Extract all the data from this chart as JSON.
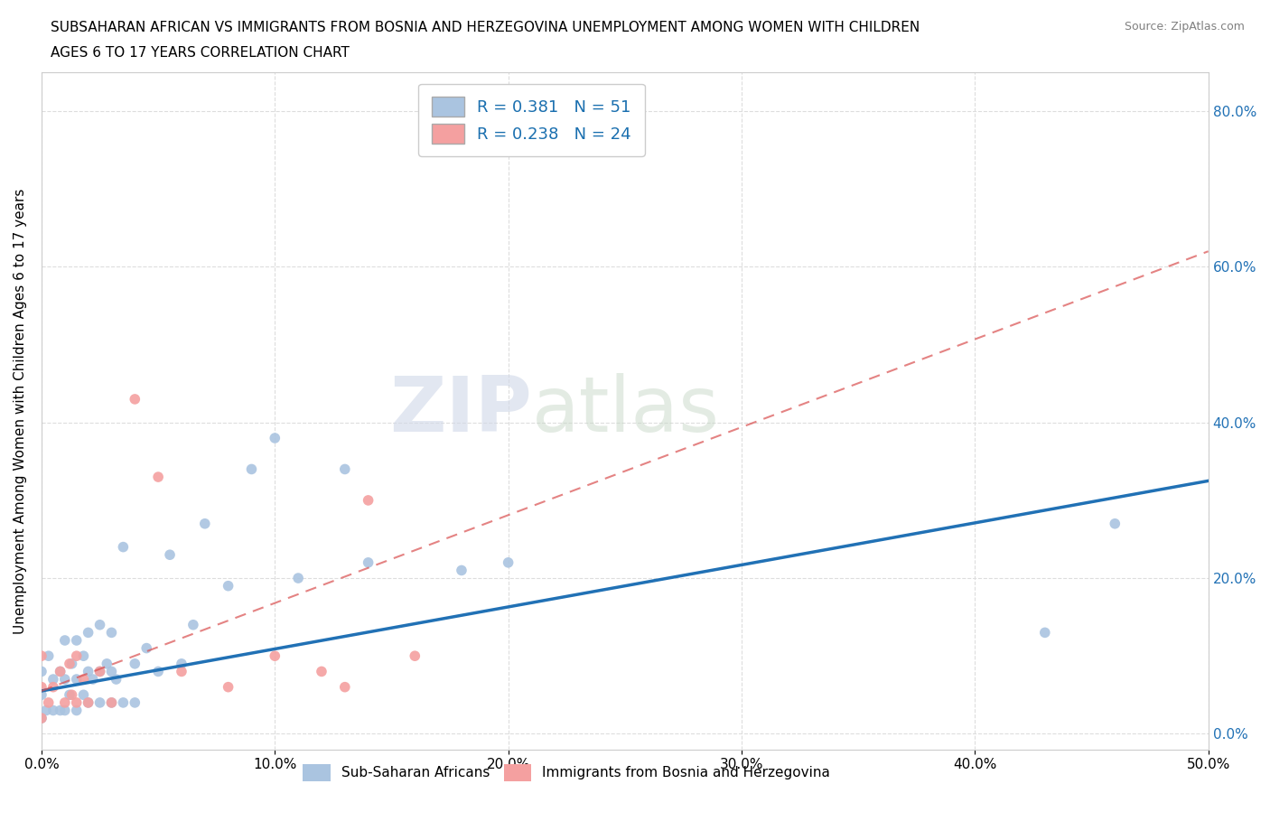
{
  "title_line1": "SUBSAHARAN AFRICAN VS IMMIGRANTS FROM BOSNIA AND HERZEGOVINA UNEMPLOYMENT AMONG WOMEN WITH CHILDREN",
  "title_line2": "AGES 6 TO 17 YEARS CORRELATION CHART",
  "source_text": "Source: ZipAtlas.com",
  "ylabel": "Unemployment Among Women with Children Ages 6 to 17 years",
  "xlim": [
    0.0,
    0.5
  ],
  "ylim": [
    -0.02,
    0.85
  ],
  "xticks": [
    0.0,
    0.1,
    0.2,
    0.3,
    0.4,
    0.5
  ],
  "xticklabels": [
    "0.0%",
    "10.0%",
    "20.0%",
    "30.0%",
    "40.0%",
    "50.0%"
  ],
  "yticks": [
    0.0,
    0.2,
    0.4,
    0.6,
    0.8
  ],
  "yticklabels": [
    "",
    "",
    "",
    "",
    ""
  ],
  "right_ytick_labels": [
    "0.0%",
    "20.0%",
    "40.0%",
    "60.0%",
    "80.0%"
  ],
  "blue_R": 0.381,
  "blue_N": 51,
  "pink_R": 0.238,
  "pink_N": 24,
  "blue_color": "#aac4e0",
  "pink_color": "#f4a0a0",
  "blue_line_color": "#2171b5",
  "pink_line_color": "#d94f4f",
  "watermark_zip": "ZIP",
  "watermark_atlas": "atlas",
  "background_color": "#ffffff",
  "grid_color": "#dddddd",
  "blue_scatter_x": [
    0.0,
    0.0,
    0.0,
    0.002,
    0.003,
    0.005,
    0.005,
    0.008,
    0.008,
    0.01,
    0.01,
    0.01,
    0.012,
    0.013,
    0.015,
    0.015,
    0.015,
    0.018,
    0.018,
    0.02,
    0.02,
    0.02,
    0.022,
    0.025,
    0.025,
    0.025,
    0.028,
    0.03,
    0.03,
    0.03,
    0.032,
    0.035,
    0.035,
    0.04,
    0.04,
    0.045,
    0.05,
    0.055,
    0.06,
    0.065,
    0.07,
    0.08,
    0.09,
    0.1,
    0.11,
    0.13,
    0.14,
    0.18,
    0.2,
    0.43,
    0.46
  ],
  "blue_scatter_y": [
    0.02,
    0.05,
    0.08,
    0.03,
    0.1,
    0.03,
    0.07,
    0.03,
    0.08,
    0.03,
    0.07,
    0.12,
    0.05,
    0.09,
    0.03,
    0.07,
    0.12,
    0.05,
    0.1,
    0.04,
    0.08,
    0.13,
    0.07,
    0.04,
    0.08,
    0.14,
    0.09,
    0.04,
    0.08,
    0.13,
    0.07,
    0.04,
    0.24,
    0.04,
    0.09,
    0.11,
    0.08,
    0.23,
    0.09,
    0.14,
    0.27,
    0.19,
    0.34,
    0.38,
    0.2,
    0.34,
    0.22,
    0.21,
    0.22,
    0.13,
    0.27
  ],
  "pink_scatter_x": [
    0.0,
    0.0,
    0.0,
    0.003,
    0.005,
    0.008,
    0.01,
    0.012,
    0.013,
    0.015,
    0.015,
    0.018,
    0.02,
    0.025,
    0.03,
    0.04,
    0.05,
    0.06,
    0.08,
    0.1,
    0.12,
    0.13,
    0.14,
    0.16
  ],
  "pink_scatter_y": [
    0.02,
    0.06,
    0.1,
    0.04,
    0.06,
    0.08,
    0.04,
    0.09,
    0.05,
    0.04,
    0.1,
    0.07,
    0.04,
    0.08,
    0.04,
    0.43,
    0.33,
    0.08,
    0.06,
    0.1,
    0.08,
    0.06,
    0.3,
    0.1
  ],
  "blue_trend_x": [
    0.0,
    0.5
  ],
  "blue_trend_y": [
    0.055,
    0.325
  ],
  "pink_trend_x": [
    0.0,
    0.5
  ],
  "pink_trend_y": [
    0.055,
    0.62
  ],
  "legend_series_blue": "Sub-Saharan Africans",
  "legend_series_pink": "Immigrants from Bosnia and Herzegovina"
}
